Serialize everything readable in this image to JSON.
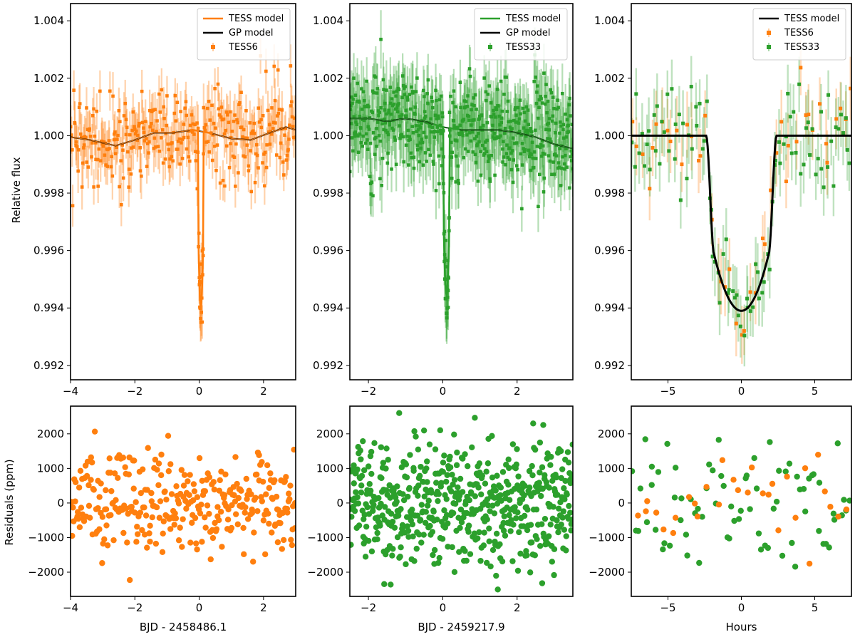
{
  "colors": {
    "tess6": "#ff7f0e",
    "tess33": "#2ca02c",
    "gp": "#000000",
    "axis": "#000000"
  },
  "figure": {
    "ylabel_top": "Relative flux",
    "ylabel_bottom": "Residuals (ppm)"
  },
  "chart_data": [
    {
      "id": "p1",
      "type": "scatter",
      "xlim": [
        -4,
        3
      ],
      "ylim": [
        0.9915,
        1.0046
      ],
      "xticks": [
        -4,
        -2,
        0,
        2
      ],
      "yticks": [
        0.992,
        0.994,
        0.996,
        0.998,
        1.0,
        1.002,
        1.004
      ],
      "xticklabels": [
        "−4",
        "−2",
        "0",
        "2"
      ],
      "yticklabels": [
        "0.992",
        "0.994",
        "0.996",
        "0.998",
        "1.000",
        "1.002",
        "1.004"
      ],
      "xlabel": "",
      "legend_loc": "top-right",
      "legend": [
        {
          "label": "TESS model",
          "kind": "line",
          "color": "#ff7f0e"
        },
        {
          "label": "GP model",
          "kind": "line",
          "color": "#000000"
        },
        {
          "label": "TESS6",
          "kind": "point",
          "color": "#ff7f0e"
        }
      ],
      "gp_model": {
        "x": [
          -4,
          -3.4,
          -2.6,
          -2.0,
          -1.4,
          -0.8,
          -0.2,
          0.3,
          1.0,
          1.6,
          2.2,
          2.7,
          3.0
        ],
        "y": [
          0.99995,
          0.99985,
          0.99965,
          0.99985,
          1.0001,
          1.0001,
          1.0002,
          1.0001,
          0.9999,
          0.99985,
          1.0001,
          1.0003,
          1.0002
        ]
      },
      "transit": {
        "center": 0.05,
        "depth": 0.0061,
        "half_width": 0.09,
        "ingress": 0.02
      },
      "data": {
        "series": "TESS6",
        "n": 320,
        "seed": 11,
        "scatter": 0.00075,
        "errbar": 0.0007,
        "errbar_alpha": 0.35
      }
    },
    {
      "id": "p2",
      "type": "scatter",
      "xlim": [
        -2.5,
        3.5
      ],
      "ylim": [
        0.9915,
        1.0046
      ],
      "xticks": [
        -2,
        0,
        2
      ],
      "yticks": [
        0.992,
        0.994,
        0.996,
        0.998,
        1.0,
        1.002,
        1.004
      ],
      "xticklabels": [
        "−2",
        "0",
        "2"
      ],
      "yticklabels": [
        "0.992",
        "0.994",
        "0.996",
        "0.998",
        "1.000",
        "1.002",
        "1.004"
      ],
      "xlabel": "",
      "legend_loc": "top-right",
      "legend": [
        {
          "label": "TESS model",
          "kind": "line",
          "color": "#2ca02c"
        },
        {
          "label": "GP model",
          "kind": "line",
          "color": "#000000"
        },
        {
          "label": "TESS33",
          "kind": "point",
          "color": "#2ca02c"
        }
      ],
      "gp_model": {
        "x": [
          -2.5,
          -2.0,
          -1.5,
          -1.0,
          -0.5,
          0.0,
          0.5,
          1.0,
          1.5,
          2.0,
          2.5,
          3.0,
          3.5
        ],
        "y": [
          1.0006,
          1.0006,
          1.0005,
          1.0006,
          1.0005,
          1.0003,
          1.0002,
          1.0002,
          1.0002,
          1.0001,
          0.99995,
          0.9997,
          0.99955
        ]
      },
      "transit": {
        "center": 0.1,
        "depth": 0.0058,
        "half_width": 0.09,
        "ingress": 0.02
      },
      "data": {
        "series": "TESS33",
        "n": 560,
        "seed": 23,
        "scatter": 0.0009,
        "errbar": 0.0009,
        "errbar_alpha": 0.35
      }
    },
    {
      "id": "p3",
      "type": "scatter",
      "xlim": [
        -7.5,
        7.5
      ],
      "ylim": [
        0.9915,
        1.0046
      ],
      "xticks": [
        -5,
        0,
        5
      ],
      "yticks": [
        0.992,
        0.994,
        0.996,
        0.998,
        1.0,
        1.002,
        1.004
      ],
      "xticklabels": [
        "−5",
        "0",
        "5"
      ],
      "yticklabels": [
        "0.992",
        "0.994",
        "0.996",
        "0.998",
        "1.000",
        "1.002",
        "1.004"
      ],
      "xlabel": "",
      "legend_loc": "top-right",
      "legend": [
        {
          "label": "TESS model",
          "kind": "line",
          "color": "#000000"
        },
        {
          "label": "TESS6",
          "kind": "point",
          "color": "#ff7f0e"
        },
        {
          "label": "TESS33",
          "kind": "point",
          "color": "#2ca02c"
        }
      ],
      "model": {
        "depth": 0.0061,
        "t_half": 2.4,
        "ingress": 0.55
      },
      "data": {
        "n6": 45,
        "n33": 95,
        "seed": 37,
        "scatter": 0.0009,
        "errbar": 0.001,
        "errbar_alpha": 0.3
      }
    },
    {
      "id": "r1",
      "type": "scatter",
      "xlim": [
        -4,
        3
      ],
      "ylim": [
        -2700,
        2800
      ],
      "xticks": [
        -4,
        -2,
        0,
        2
      ],
      "yticks": [
        -2000,
        -1000,
        0,
        1000,
        2000
      ],
      "xticklabels": [
        "−4",
        "−2",
        "0",
        "2"
      ],
      "yticklabels": [
        "−2000",
        "−1000",
        "0",
        "1000",
        "2000"
      ],
      "xlabel": "BJD - 2458486.1",
      "data": {
        "series": "TESS6",
        "n": 320,
        "seed": 51,
        "scatter": 700,
        "color": "#ff7f0e"
      }
    },
    {
      "id": "r2",
      "type": "scatter",
      "xlim": [
        -2.5,
        3.5
      ],
      "ylim": [
        -2700,
        2800
      ],
      "xticks": [
        -2,
        0,
        2
      ],
      "yticks": [
        -2000,
        -1000,
        0,
        1000,
        2000
      ],
      "xticklabels": [
        "−2",
        "0",
        "2"
      ],
      "yticklabels": [
        "−2000",
        "−1000",
        "0",
        "1000",
        "2000"
      ],
      "xlabel": "BJD - 2459217.9",
      "data": {
        "series": "TESS33",
        "n": 560,
        "seed": 63,
        "scatter": 900,
        "color": "#2ca02c"
      }
    },
    {
      "id": "r3",
      "type": "scatter",
      "xlim": [
        -7.5,
        7.5
      ],
      "ylim": [
        -2700,
        2800
      ],
      "xticks": [
        -5,
        0,
        5
      ],
      "yticks": [
        -2000,
        -1000,
        0,
        1000,
        2000
      ],
      "xticklabels": [
        "−5",
        "0",
        "5"
      ],
      "yticklabels": [
        "−2000",
        "−1000",
        "0",
        "1000",
        "2000"
      ],
      "xlabel": "Hours",
      "data": {
        "n6": 30,
        "n33": 75,
        "seed": 79,
        "scatter": 850
      }
    }
  ]
}
